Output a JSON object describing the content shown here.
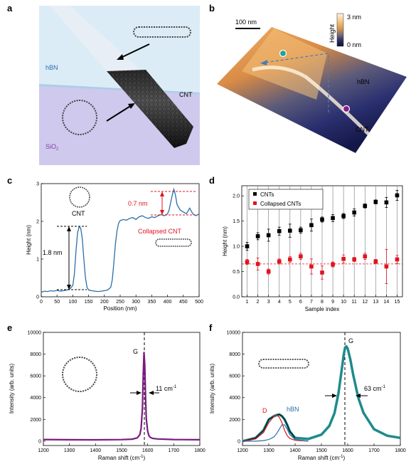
{
  "panel_labels": [
    "a",
    "b",
    "c",
    "d",
    "e",
    "f"
  ],
  "panel_a": {
    "labels": {
      "hbn": "hBN",
      "cnt": "CNT",
      "sio2_main": "SiO",
      "sio2_sub": "2"
    }
  },
  "panel_b": {
    "scalebar_label": "100 nm",
    "colorbar": {
      "max_label": "3 nm",
      "min_label": "0 nm",
      "title": "Height",
      "colors": [
        "#0c0d3a",
        "#2b2f63",
        "#7a6d74",
        "#d99a4c",
        "#f5cf93",
        "#fdf4e3"
      ]
    },
    "labels": {
      "hbn": "hBN",
      "cnt": "CNT"
    },
    "marker_colors": {
      "hbn": "#1fa39a",
      "cnt": "#8b1a8b"
    }
  },
  "panel_c": {
    "xlabel": "Position (nm)",
    "ylabel": "Height (nm)",
    "xticks": [
      "0",
      "50",
      "100",
      "150",
      "200",
      "250",
      "300",
      "350",
      "400",
      "450",
      "500"
    ],
    "yticks": [
      "0",
      "1",
      "2",
      "3"
    ],
    "annotations": {
      "cnt_height": "1.8 nm",
      "collapsed_height": "0.7 nm",
      "cnt": "CNT",
      "collapsed": "Collapsed CNT"
    },
    "line_color": "#2a6fa8",
    "accent_color": "#e0141e"
  },
  "panel_d": {
    "xlabel": "Sample index",
    "ylabel": "Height (nm)",
    "xticks": [
      "1",
      "2",
      "3",
      "4",
      "5",
      "6",
      "7",
      "8",
      "9",
      "10",
      "11",
      "12",
      "13",
      "14",
      "15"
    ],
    "yticks": [
      "0.0",
      "0.5",
      "1.0",
      "1.5",
      "2.0"
    ],
    "legend": [
      "CNTs",
      "Collapsed CNTs"
    ],
    "colors": {
      "cnts": "#000000",
      "collapsed": "#e0141e"
    }
  },
  "panel_e": {
    "xlabel_main": "Raman shift (cm",
    "xlabel_sup": "-1",
    "xlabel_end": ")",
    "ylabel": "Intensity (arb. units)",
    "xticks": [
      "1200",
      "1300",
      "1400",
      "1500",
      "1600",
      "1700",
      "1800"
    ],
    "yticks": [
      "0",
      "2000",
      "4000",
      "6000",
      "8000",
      "10000"
    ],
    "annotations": {
      "g": "G",
      "fwhm_main": "11 cm",
      "fwhm_sup": "-1"
    },
    "line_color": "#7b1a80"
  },
  "panel_f": {
    "xlabel_main": "Raman shift (cm",
    "xlabel_sup": "-1",
    "xlabel_end": ")",
    "ylabel": "Intensity (arb. units)",
    "xticks": [
      "1200",
      "1300",
      "1400",
      "1500",
      "1600",
      "1700",
      "1800"
    ],
    "yticks": [
      "0",
      "2000",
      "4000",
      "6000",
      "8000",
      "10000"
    ],
    "annotations": {
      "g": "G",
      "d": "D",
      "hbn": "hBN",
      "fwhm_main": "63 cm",
      "fwhm_sup": "-1"
    },
    "colors": {
      "data": "#1f8a8c",
      "d_fit": "#e0141e",
      "hbn_fit": "#2a6fa8"
    }
  },
  "chart_data": [
    {
      "type": "line",
      "panel": "c",
      "x": [
        0,
        10,
        20,
        30,
        40,
        50,
        60,
        70,
        80,
        90,
        100,
        105,
        110,
        115,
        120,
        125,
        130,
        135,
        140,
        145,
        150,
        160,
        170,
        180,
        190,
        200,
        210,
        220,
        225,
        230,
        235,
        240,
        245,
        250,
        260,
        270,
        280,
        290,
        300,
        310,
        320,
        330,
        340,
        350,
        360,
        370,
        380,
        390,
        400,
        405,
        410,
        415,
        420,
        425,
        430,
        440,
        450,
        460,
        470,
        480,
        490,
        500
      ],
      "y": [
        0.12,
        0.15,
        0.14,
        0.16,
        0.15,
        0.17,
        0.15,
        0.16,
        0.18,
        0.2,
        0.3,
        0.6,
        1.2,
        1.7,
        1.85,
        1.82,
        1.55,
        1.0,
        0.5,
        0.25,
        0.18,
        0.16,
        0.15,
        0.14,
        0.15,
        0.16,
        0.18,
        0.25,
        0.45,
        0.9,
        1.4,
        1.75,
        1.95,
        2.02,
        2.05,
        2.03,
        2.08,
        2.1,
        2.05,
        2.12,
        2.15,
        2.1,
        2.08,
        2.12,
        2.1,
        2.15,
        2.18,
        2.15,
        2.2,
        2.3,
        2.5,
        2.7,
        2.85,
        2.7,
        2.45,
        2.3,
        2.25,
        2.2,
        2.35,
        2.2,
        2.15,
        2.2
      ],
      "xlim": [
        0,
        500
      ],
      "ylim": [
        0,
        3
      ],
      "xlabel": "Position (nm)",
      "ylabel": "Height (nm)"
    },
    {
      "type": "scatter",
      "panel": "d",
      "x": [
        1,
        2,
        3,
        4,
        5,
        6,
        7,
        8,
        9,
        10,
        11,
        12,
        13,
        14,
        15
      ],
      "series": [
        {
          "name": "CNTs",
          "values": [
            1.0,
            1.2,
            1.22,
            1.3,
            1.31,
            1.32,
            1.42,
            1.53,
            1.56,
            1.6,
            1.67,
            1.8,
            1.88,
            1.87,
            2.01
          ],
          "errors": [
            0.08,
            0.07,
            0.12,
            0.08,
            0.13,
            0.06,
            0.12,
            0.05,
            0.07,
            0.05,
            0.07,
            0.04,
            0.04,
            0.1,
            0.1
          ]
        },
        {
          "name": "Collapsed CNTs",
          "values": [
            0.69,
            0.65,
            0.5,
            0.7,
            0.74,
            0.8,
            0.6,
            0.48,
            0.64,
            0.75,
            0.74,
            0.8,
            0.7,
            0.6,
            0.74
          ],
          "errors": [
            0.05,
            0.12,
            0.05,
            0.05,
            0.06,
            0.06,
            0.15,
            0.13,
            0.05,
            0.08,
            0.04,
            0.06,
            0.04,
            0.34,
            0.08
          ]
        }
      ],
      "reference_line_y": 0.65,
      "xlim": [
        0.5,
        15.5
      ],
      "ylim": [
        0,
        2.2
      ],
      "xlabel": "Sample index",
      "ylabel": "Height (nm)"
    },
    {
      "type": "line",
      "panel": "e",
      "x": [
        1200,
        1300,
        1400,
        1500,
        1540,
        1560,
        1570,
        1575,
        1580,
        1583,
        1586,
        1589,
        1592,
        1595,
        1600,
        1605,
        1610,
        1620,
        1640,
        1700,
        1800
      ],
      "y": [
        150,
        130,
        120,
        140,
        180,
        300,
        600,
        1200,
        3000,
        6000,
        8200,
        7000,
        4000,
        2000,
        900,
        500,
        350,
        250,
        200,
        150,
        130
      ],
      "xlim": [
        1200,
        1800
      ],
      "ylim": [
        -400,
        10000
      ],
      "xlabel": "Raman shift (cm-1)",
      "ylabel": "Intensity (arb. units)"
    },
    {
      "type": "line",
      "panel": "f",
      "x": [
        1200,
        1250,
        1280,
        1300,
        1320,
        1330,
        1340,
        1350,
        1360,
        1370,
        1380,
        1400,
        1450,
        1500,
        1530,
        1550,
        1565,
        1575,
        1585,
        1590,
        1595,
        1600,
        1610,
        1620,
        1640,
        1660,
        1700,
        1750,
        1800
      ],
      "series": [
        {
          "name": "",
          "values": [
            0,
            300,
            1000,
            2000,
            2300,
            2400,
            2450,
            2300,
            2000,
            1500,
            900,
            300,
            200,
            600,
            1400,
            2600,
            4400,
            6200,
            8000,
            8600,
            8700,
            8500,
            7500,
            6200,
            4000,
            2600,
            1100,
            500,
            300
          ]
        },
        {
          "name": "D",
          "values": [
            0,
            200,
            800,
            1700,
            2300,
            2400,
            2200,
            1700,
            1000,
            500,
            250,
            80,
            0,
            0,
            0,
            0,
            0,
            0,
            0,
            0,
            0,
            0,
            0,
            0,
            0,
            0,
            0,
            0,
            0
          ]
        },
        {
          "name": "hBN",
          "values": [
            0,
            0,
            50,
            150,
            400,
            700,
            1100,
            1500,
            1500,
            1100,
            600,
            150,
            0,
            0,
            0,
            0,
            0,
            0,
            0,
            0,
            0,
            0,
            0,
            0,
            0,
            0,
            0,
            0,
            0
          ]
        }
      ],
      "xlim": [
        1200,
        1800
      ],
      "ylim": [
        -400,
        10000
      ],
      "xlabel": "Raman shift (cm-1)",
      "ylabel": "Intensity (arb. units)"
    }
  ]
}
